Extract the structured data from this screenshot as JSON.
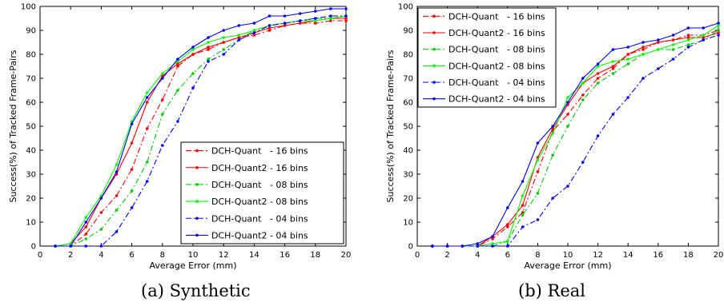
{
  "chart_data": [
    {
      "type": "line",
      "caption": "(a) Synthetic",
      "xlabel": "Average Error (mm)",
      "ylabel": "Success(%) of Tracked Frame-Pairs",
      "xlim": [
        0,
        20
      ],
      "ylim": [
        0,
        100
      ],
      "xticks": [
        "0",
        "2",
        "4",
        "6",
        "8",
        "10",
        "12",
        "14",
        "16",
        "18",
        "20"
      ],
      "yticks": [
        "0",
        "10",
        "20",
        "30",
        "40",
        "50",
        "60",
        "70",
        "80",
        "90",
        "100"
      ],
      "grid": false,
      "legend_position": "bottom-right",
      "x": [
        1,
        2,
        3,
        4,
        5,
        6,
        7,
        8,
        9,
        10,
        11,
        12,
        13,
        14,
        15,
        16,
        17,
        18,
        19,
        20
      ],
      "series": [
        {
          "name": "DCH-Quant   - 16 bins",
          "color": "#ff0000",
          "dash": "dashdot",
          "values": [
            0,
            0,
            5,
            14,
            21,
            32,
            49,
            61,
            75,
            80,
            82,
            85,
            87,
            88,
            90,
            92,
            93,
            93,
            94,
            94
          ]
        },
        {
          "name": "DCH-Quant2 - 16 bins",
          "color": "#ff0000",
          "dash": "solid",
          "values": [
            0,
            1,
            8,
            20,
            30,
            43,
            60,
            71,
            76,
            80,
            83,
            85,
            87,
            89,
            91,
            92,
            93,
            94,
            95,
            95
          ]
        },
        {
          "name": "DCH-Quant   - 08 bins",
          "color": "#00cc00",
          "dash": "dashdot",
          "values": [
            0,
            0,
            3,
            7,
            15,
            23,
            35,
            55,
            65,
            72,
            78,
            82,
            86,
            90,
            92,
            93,
            94,
            95,
            95,
            96
          ]
        },
        {
          "name": "DCH-Quant2 - 08 bins",
          "color": "#00ff00",
          "dash": "solid",
          "values": [
            0,
            1,
            12,
            21,
            34,
            52,
            64,
            72,
            77,
            82,
            85,
            87,
            88,
            90,
            92,
            93,
            94,
            94,
            95,
            96
          ]
        },
        {
          "name": "DCH-Quant   - 04 bins",
          "color": "#0000ff",
          "dash": "dashdot",
          "values": [
            0,
            0,
            0,
            0,
            6,
            16,
            27,
            42,
            52,
            66,
            77,
            80,
            86,
            89,
            92,
            93,
            94,
            95,
            96,
            96
          ]
        },
        {
          "name": "DCH-Quant2 - 04 bins",
          "color": "#0000ff",
          "dash": "solid",
          "values": [
            0,
            0,
            10,
            20,
            31,
            51,
            62,
            70,
            78,
            83,
            87,
            90,
            92,
            93,
            96,
            96,
            97,
            98,
            99,
            99
          ]
        }
      ]
    },
    {
      "type": "line",
      "caption": "(b) Real",
      "xlabel": "Average Error (mm)",
      "ylabel": "Success(%) of Tracked Frame-Pairs",
      "xlim": [
        0,
        20
      ],
      "ylim": [
        0,
        100
      ],
      "xticks": [
        "0",
        "2",
        "4",
        "6",
        "8",
        "10",
        "12",
        "14",
        "16",
        "18",
        "20"
      ],
      "yticks": [
        "0",
        "10",
        "20",
        "30",
        "40",
        "50",
        "60",
        "70",
        "80",
        "90",
        "100"
      ],
      "grid": false,
      "legend_position": "top-left",
      "x": [
        1,
        2,
        3,
        4,
        5,
        6,
        7,
        8,
        9,
        10,
        11,
        12,
        13,
        14,
        15,
        16,
        17,
        18,
        19,
        20
      ],
      "series": [
        {
          "name": "DCH-Quant   - 16 bins",
          "color": "#ff0000",
          "dash": "dashdot",
          "values": [
            0,
            0,
            0,
            0,
            3,
            8,
            14,
            31,
            48,
            55,
            63,
            70,
            74,
            80,
            82,
            85,
            86,
            88,
            88,
            90
          ]
        },
        {
          "name": "DCH-Quant2 - 16 bins",
          "color": "#ff0000",
          "dash": "solid",
          "values": [
            0,
            0,
            0,
            0,
            4,
            9,
            17,
            37,
            49,
            59,
            68,
            72,
            75,
            80,
            83,
            85,
            86,
            87,
            87,
            89
          ]
        },
        {
          "name": "DCH-Quant   - 08 bins",
          "color": "#00cc00",
          "dash": "dashdot",
          "values": [
            0,
            0,
            0,
            0,
            0,
            2,
            13,
            22,
            38,
            50,
            61,
            68,
            72,
            76,
            80,
            82,
            82,
            84,
            86,
            90
          ]
        },
        {
          "name": "DCH-Quant2 - 08 bins",
          "color": "#00ff00",
          "dash": "solid",
          "values": [
            0,
            0,
            0,
            0,
            1,
            2,
            21,
            36,
            47,
            62,
            68,
            75,
            77,
            78,
            80,
            82,
            84,
            86,
            88,
            92
          ]
        },
        {
          "name": "DCH-Quant   - 04 bins",
          "color": "#0000ff",
          "dash": "dashdot",
          "values": [
            0,
            0,
            0,
            0,
            0,
            0,
            8,
            11,
            20,
            25,
            35,
            46,
            55,
            62,
            70,
            74,
            78,
            83,
            86,
            88
          ]
        },
        {
          "name": "DCH-Quant2 - 04 bins",
          "color": "#0000ff",
          "dash": "solid",
          "values": [
            0,
            0,
            0,
            1,
            4,
            16,
            27,
            43,
            50,
            60,
            70,
            76,
            82,
            83,
            85,
            86,
            88,
            91,
            91,
            93
          ]
        }
      ]
    }
  ]
}
